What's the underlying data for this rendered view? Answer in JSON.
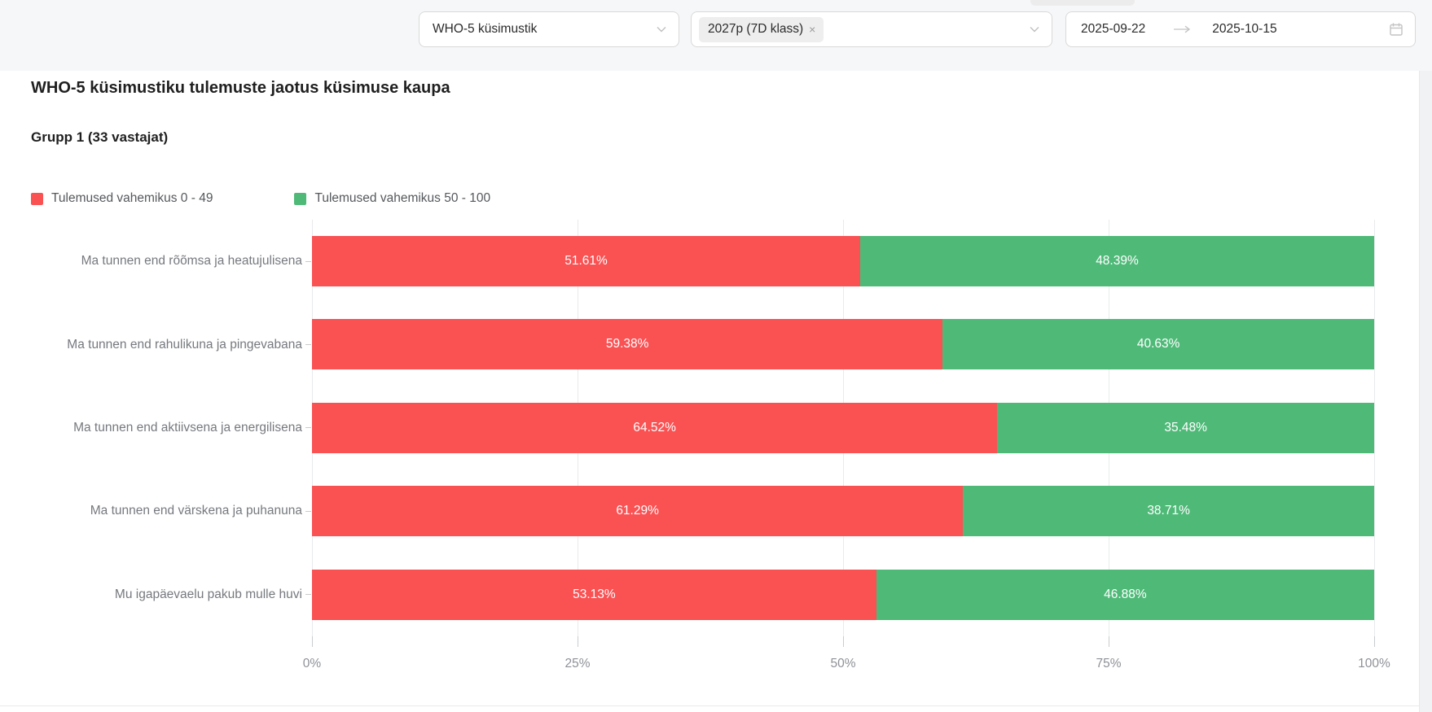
{
  "topbar": {
    "questionnaire_select": {
      "value": "WHO-5 küsimustik"
    },
    "group_select": {
      "tag": "2027p (7D klass)",
      "remove_label": "×"
    },
    "date_range": {
      "start": "2025-09-22",
      "end": "2025-10-15"
    }
  },
  "page": {
    "title": "WHO-5 küsimustiku tulemuste jaotus küsimuse kaupa",
    "group_heading": "Grupp 1 (33 vastajat)"
  },
  "colors": {
    "series_low": "#fa5153",
    "series_high": "#4fba78",
    "topbar_bg": "#f6f7f8",
    "grid_line": "#e9eaeb"
  },
  "chart_data": {
    "type": "bar",
    "orientation": "horizontal",
    "stacked": true,
    "grid": true,
    "legend_position": "top-left",
    "title": "WHO-5 küsimustiku tulemuste jaotus küsimuse kaupa",
    "subtitle": "Grupp 1 (33 vastajat)",
    "categories": [
      "Ma tunnen end rõõmsa ja heatujulisena",
      "Ma tunnen end rahulikuna ja pingevabana",
      "Ma tunnen end aktiivsena ja energilisena",
      "Ma tunnen end värskena ja puhanuna",
      "Mu igapäevaelu pakub mulle huvi"
    ],
    "series": [
      {
        "name": "Tulemused vahemikus 0 - 49",
        "color": "#fa5153",
        "values": [
          51.61,
          59.38,
          64.52,
          61.29,
          53.13
        ],
        "labels": [
          "51.61%",
          "59.38%",
          "64.52%",
          "61.29%",
          "53.13%"
        ]
      },
      {
        "name": "Tulemused vahemikus 50 - 100",
        "color": "#4fba78",
        "values": [
          48.39,
          40.63,
          35.48,
          38.71,
          46.88
        ],
        "labels": [
          "48.39%",
          "40.63%",
          "35.48%",
          "38.71%",
          "46.88%"
        ]
      }
    ],
    "x_axis": {
      "range": [
        0,
        100
      ],
      "tick_labels": [
        "0%",
        "25%",
        "50%",
        "75%",
        "100%"
      ],
      "tick_values": [
        0,
        25,
        50,
        75,
        100
      ]
    }
  }
}
